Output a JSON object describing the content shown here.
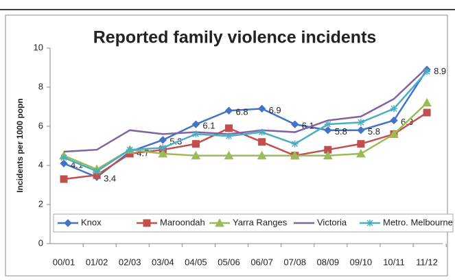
{
  "chart_data": {
    "type": "line",
    "title": "Reported family violence incidents",
    "y_label": "Incidents per 1000 popn",
    "categories": [
      "00/01",
      "01/02",
      "02/03",
      "03/04",
      "04/05",
      "05/06",
      "06/07",
      "07/08",
      "08/09",
      "09/10",
      "10/11",
      "11/12"
    ],
    "series": [
      {
        "name": "Knox",
        "color": "#4472c4",
        "marker": "diamond",
        "data_labels": true,
        "values": [
          4.1,
          3.4,
          4.7,
          5.3,
          6.1,
          6.8,
          6.9,
          6.1,
          5.8,
          5.8,
          6.3,
          8.9
        ]
      },
      {
        "name": "Maroondah",
        "color": "#c0504d",
        "marker": "square",
        "values": [
          3.3,
          3.5,
          4.6,
          4.8,
          5.1,
          5.9,
          5.2,
          4.5,
          4.8,
          5.1,
          5.6,
          6.7
        ]
      },
      {
        "name": "Yarra Ranges",
        "color": "#9bbb59",
        "marker": "triangle",
        "values": [
          4.5,
          3.8,
          4.8,
          4.6,
          4.5,
          4.5,
          4.5,
          4.5,
          4.5,
          4.6,
          5.6,
          7.2
        ]
      },
      {
        "name": "Victoria",
        "color": "#8064a2",
        "marker": "none",
        "values": [
          4.7,
          4.8,
          5.8,
          5.6,
          5.7,
          5.6,
          5.8,
          5.7,
          6.3,
          6.5,
          7.4,
          9.0
        ]
      },
      {
        "name": "Metro. Melbourne",
        "color": "#4bacc6",
        "marker": "star",
        "values": [
          4.4,
          3.7,
          4.8,
          4.9,
          5.6,
          5.5,
          5.7,
          5.1,
          6.1,
          6.2,
          6.9,
          8.8
        ]
      }
    ],
    "ylim": [
      0,
      10
    ],
    "yticks": [
      0,
      2,
      4,
      6,
      8,
      10
    ],
    "grid": false,
    "legend": "bottom"
  }
}
